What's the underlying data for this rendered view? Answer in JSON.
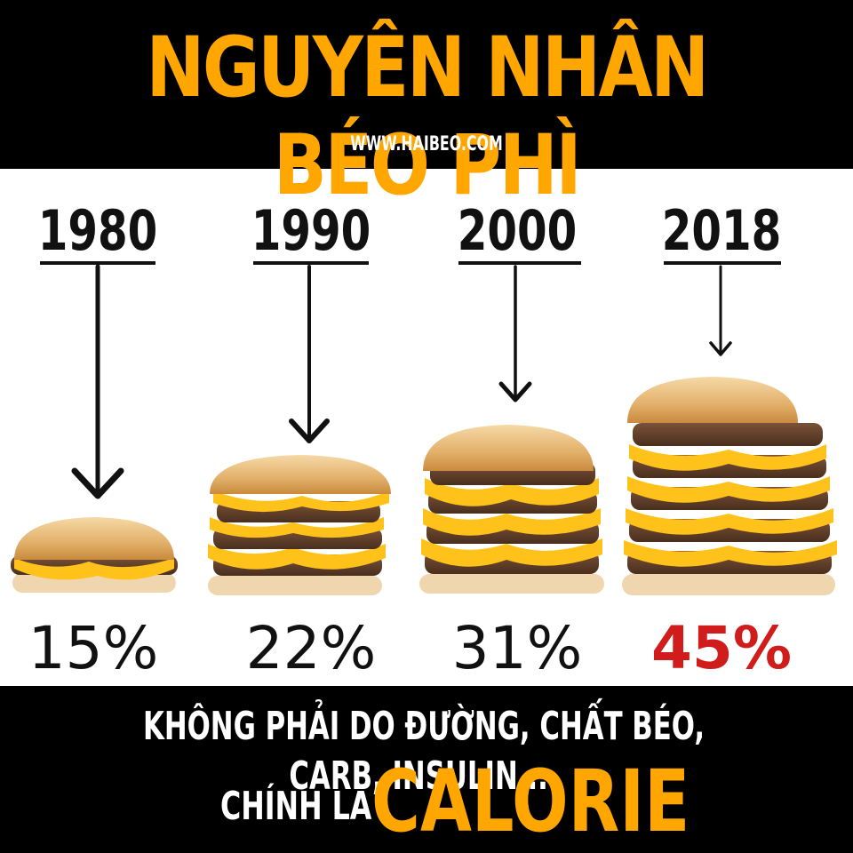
{
  "header": {
    "title": "NGUYÊN NHÂN BÉO PHÌ",
    "site": "WWW.HAIBEO.COM"
  },
  "panels": [
    {
      "year": "1980",
      "percent": "15%"
    },
    {
      "year": "1990",
      "percent": "22%"
    },
    {
      "year": "2000",
      "percent": "31%"
    },
    {
      "year": "2018",
      "percent": "45%"
    }
  ],
  "colors": {
    "accent": "#FFA600",
    "highlight": "#D11C1C",
    "band": "#000000"
  },
  "footer": {
    "tagline": "KHÔNG PHẢI DO ĐƯỜNG, CHẤT BÉO, CARB, INSULIN ...",
    "prefix": "CHÍNH LÀ",
    "emphasis": "CALORIE"
  }
}
